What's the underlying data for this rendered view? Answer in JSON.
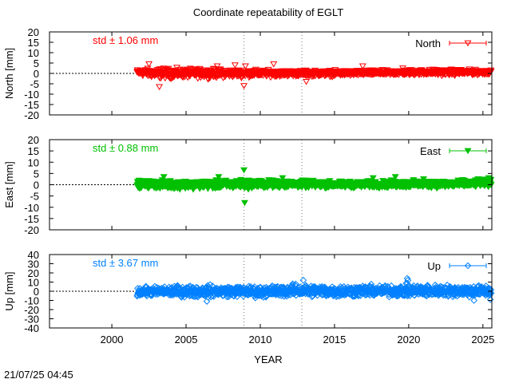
{
  "title": "Coordinate repeatability of EGLT",
  "timestamp": "21/07/25 04:45",
  "xlabel": "YEAR",
  "chart_data": {
    "type": "scatter",
    "x_range": [
      1995.8,
      2025.6
    ],
    "x_ticks": [
      {
        "v": 2000,
        "label": "2000"
      },
      {
        "v": 2005,
        "label": "2005"
      },
      {
        "v": 2010,
        "label": "2010"
      },
      {
        "v": 2015,
        "label": "2015"
      },
      {
        "v": 2020,
        "label": "2020"
      },
      {
        "v": 2025,
        "label": "2025"
      }
    ],
    "data_start": 2001.7,
    "data_end": 2025.55,
    "vertical_lines": [
      2008.9,
      2012.8
    ],
    "panels": [
      {
        "key": "north",
        "ylabel": "North [mm]",
        "legend": "North",
        "marker": "triangle-down-open",
        "color": "#ff0000",
        "std_text": "std ± 1.06 mm",
        "ylim": [
          -20,
          20
        ],
        "yticks": [
          {
            "v": 20,
            "label": "20"
          },
          {
            "v": 15,
            "label": "15"
          },
          {
            "v": 10,
            "label": "10"
          },
          {
            "v": 5,
            "label": "5"
          },
          {
            "v": 0,
            "label": "0"
          },
          {
            "v": -5,
            "label": "-5"
          },
          {
            "v": -10,
            "label": "-10"
          },
          {
            "v": -15,
            "label": "-15"
          },
          {
            "v": -20,
            "label": "-20"
          }
        ],
        "band": [
          [
            2001.7,
            -1.5,
            2.5
          ],
          [
            2003,
            -3.5,
            3.5
          ],
          [
            2005,
            -3,
            3
          ],
          [
            2007,
            -3,
            3
          ],
          [
            2009,
            -2.5,
            2.5
          ],
          [
            2012,
            -2,
            2
          ],
          [
            2015,
            -2,
            2
          ],
          [
            2018,
            -1.5,
            2
          ],
          [
            2021,
            -1.5,
            2.5
          ],
          [
            2023,
            -1.5,
            2.5
          ],
          [
            2025.55,
            -1,
            2
          ]
        ],
        "outliers": [
          [
            2002.5,
            4.5
          ],
          [
            2003.2,
            -6.5
          ],
          [
            2007.1,
            3.5
          ],
          [
            2008.3,
            4
          ],
          [
            2008.9,
            -6
          ],
          [
            2009.0,
            3.5
          ],
          [
            2010.9,
            4.5
          ],
          [
            2013.1,
            -4
          ],
          [
            2016.9,
            3.5
          ],
          [
            2019.6,
            2.5
          ]
        ]
      },
      {
        "key": "east",
        "ylabel": "East [mm]",
        "legend": "East",
        "marker": "triangle-down-filled",
        "color": "#00c000",
        "std_text": "std ± 0.88 mm",
        "ylim": [
          -20,
          20
        ],
        "yticks": [
          {
            "v": 20,
            "label": "20"
          },
          {
            "v": 15,
            "label": "15"
          },
          {
            "v": 10,
            "label": "10"
          },
          {
            "v": 5,
            "label": "5"
          },
          {
            "v": 0,
            "label": "0"
          },
          {
            "v": -5,
            "label": "-5"
          },
          {
            "v": -10,
            "label": "-10"
          },
          {
            "v": -15,
            "label": "-15"
          },
          {
            "v": -20,
            "label": "-20"
          }
        ],
        "band": [
          [
            2001.7,
            -2,
            2.5
          ],
          [
            2004,
            -2.5,
            2.5
          ],
          [
            2007,
            -2.5,
            2.5
          ],
          [
            2009,
            -2.5,
            3
          ],
          [
            2012,
            -2,
            2.5
          ],
          [
            2016,
            -2,
            2
          ],
          [
            2020,
            -2,
            2.5
          ],
          [
            2023,
            -2,
            2.5
          ],
          [
            2025.55,
            -1.5,
            3
          ]
        ],
        "outliers": [
          [
            2003.5,
            3.5
          ],
          [
            2007.2,
            3.5
          ],
          [
            2008.9,
            6.5
          ],
          [
            2008.95,
            -8
          ],
          [
            2011.5,
            3
          ],
          [
            2017.6,
            3
          ],
          [
            2019.1,
            3.5
          ],
          [
            2021,
            2.5
          ],
          [
            2025.4,
            3
          ]
        ]
      },
      {
        "key": "up",
        "ylabel": "Up [mm]",
        "legend": "Up",
        "marker": "diamond-open",
        "color": "#0080ff",
        "std_text": "std ± 3.67 mm",
        "ylim": [
          -40,
          40
        ],
        "yticks": [
          {
            "v": 40,
            "label": "40"
          },
          {
            "v": 30,
            "label": "30"
          },
          {
            "v": 20,
            "label": "20"
          },
          {
            "v": 10,
            "label": "10"
          },
          {
            "v": 0,
            "label": "0"
          },
          {
            "v": -10,
            "label": "-10"
          },
          {
            "v": -20,
            "label": "-20"
          },
          {
            "v": -30,
            "label": "-30"
          },
          {
            "v": -40,
            "label": "-40"
          }
        ],
        "band": [
          [
            2001.7,
            -7,
            6
          ],
          [
            2004,
            -8,
            8
          ],
          [
            2006,
            -9,
            9
          ],
          [
            2008,
            -8,
            8
          ],
          [
            2010,
            -9,
            8
          ],
          [
            2012.5,
            -8,
            10
          ],
          [
            2015,
            -9,
            9
          ],
          [
            2018,
            -8,
            9
          ],
          [
            2020.5,
            -9,
            10
          ],
          [
            2023,
            -8,
            9
          ],
          [
            2025.55,
            -9,
            9
          ]
        ],
        "outliers": [
          [
            2006.4,
            -11
          ],
          [
            2012.9,
            12
          ],
          [
            2019.9,
            14
          ],
          [
            2019.95,
            12
          ],
          [
            2024.4,
            -10
          ],
          [
            2025.5,
            -9
          ]
        ]
      }
    ]
  }
}
